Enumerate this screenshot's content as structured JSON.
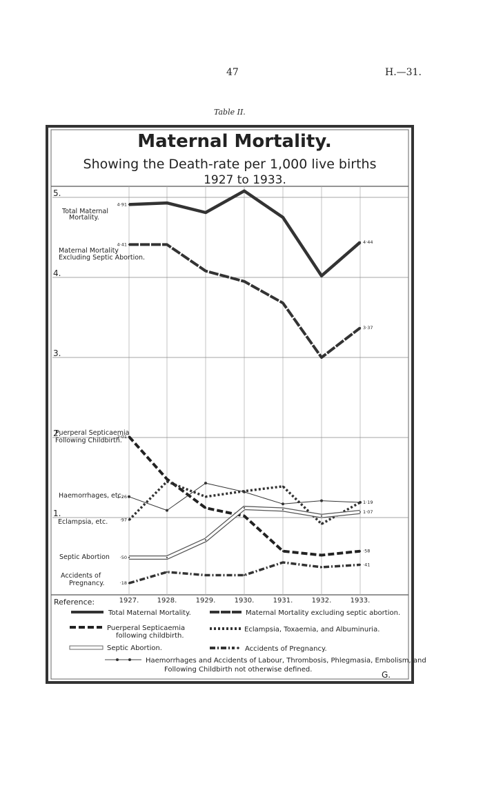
{
  "header": {
    "page_number": "47",
    "page_ref": "H.—31.",
    "table_label": "Table II."
  },
  "chart_data": {
    "type": "line",
    "title": "Maternal Mortality.",
    "subtitle": "Showing the Death-rate per 1,000 live births",
    "subtitle2": "1927 to 1933.",
    "x": [
      "1927.",
      "1928.",
      "1929.",
      "1930.",
      "1931.",
      "1932.",
      "1933."
    ],
    "y_ticks": [
      "5.",
      "4.",
      "3.",
      "2.",
      "1."
    ],
    "ylim": [
      0,
      5
    ],
    "grid": true,
    "series": [
      {
        "key": "total",
        "name": "Total Maternal Mortality.",
        "values": [
          4.91,
          4.93,
          4.81,
          5.08,
          4.75,
          4.02,
          4.44
        ],
        "start_label": "4·91",
        "end_label": "4·44",
        "color": "#333333"
      },
      {
        "key": "excl",
        "name": "Maternal Mortality Excluding Septic Abortion.",
        "values": [
          4.41,
          4.41,
          4.08,
          3.95,
          3.68,
          3.0,
          3.37
        ],
        "start_label": "4·41",
        "end_label": "3·37",
        "color": "#333333"
      },
      {
        "key": "septicaemia",
        "name": "Puerperal Septicaemia Following Childbirth.",
        "values": [
          2.01,
          1.48,
          1.12,
          1.02,
          0.58,
          0.53,
          0.58
        ],
        "start_label": "2·01",
        "end_label": "·58",
        "color": "#222222"
      },
      {
        "key": "haem",
        "name": "Haemorrhages, etc.",
        "values": [
          1.26,
          1.09,
          1.43,
          1.32,
          1.17,
          1.21,
          1.19
        ],
        "start_label": "1·26",
        "end_label": "1·19",
        "color": "#333333"
      },
      {
        "key": "eclampsia",
        "name": "Eclampsia, etc.",
        "values": [
          0.97,
          1.45,
          1.26,
          1.33,
          1.39,
          0.92,
          1.19
        ],
        "start_label": "·97",
        "end_label": "",
        "color": "#333333"
      },
      {
        "key": "septic_abortion",
        "name": "Septic Abortion",
        "values": [
          0.5,
          0.5,
          0.72,
          1.12,
          1.1,
          1.02,
          1.07
        ],
        "start_label": "·50",
        "end_label": "1·07",
        "color": "#555555"
      },
      {
        "key": "accidents",
        "name": "Accidents of Pregnancy.",
        "values": [
          0.18,
          0.32,
          0.28,
          0.28,
          0.44,
          0.38,
          0.41
        ],
        "start_label": "·18",
        "end_label": "·41",
        "color": "#333333"
      }
    ],
    "series_labels": {
      "total": [
        "Total Maternal",
        "Mortality."
      ],
      "excl": [
        "Maternal Mortality",
        "Excluding Septic Abortion."
      ],
      "septicaemia": [
        "Puerperal Septicaemia",
        "Following Childbirth."
      ],
      "haem": [
        "Haemorrhages, etc."
      ],
      "eclampsia": [
        "Eclampsia, etc."
      ],
      "septic_abortion": [
        "Septic Abortion"
      ],
      "accidents": [
        "Accidents of",
        "Pregnancy."
      ]
    },
    "reference": {
      "heading": "Reference:",
      "items": {
        "total": "Total Maternal Mortality.",
        "excl": "Maternal Mortality excluding septic abortion.",
        "septicaemia_1": "Puerperal Septicaemia",
        "septicaemia_2": "following childbirth.",
        "eclampsia": "Eclampsia, Toxaemia, and Albuminuria.",
        "septic_abortion": "Septic Abortion.",
        "accidents": "Accidents of Pregnancy.",
        "haem_1": "Haemorrhages and Accidents of Labour, Thrombosis, Phlegmasia, Embolism, and",
        "haem_2": "Following Childbirth not otherwise defined."
      },
      "signature": "G."
    }
  }
}
